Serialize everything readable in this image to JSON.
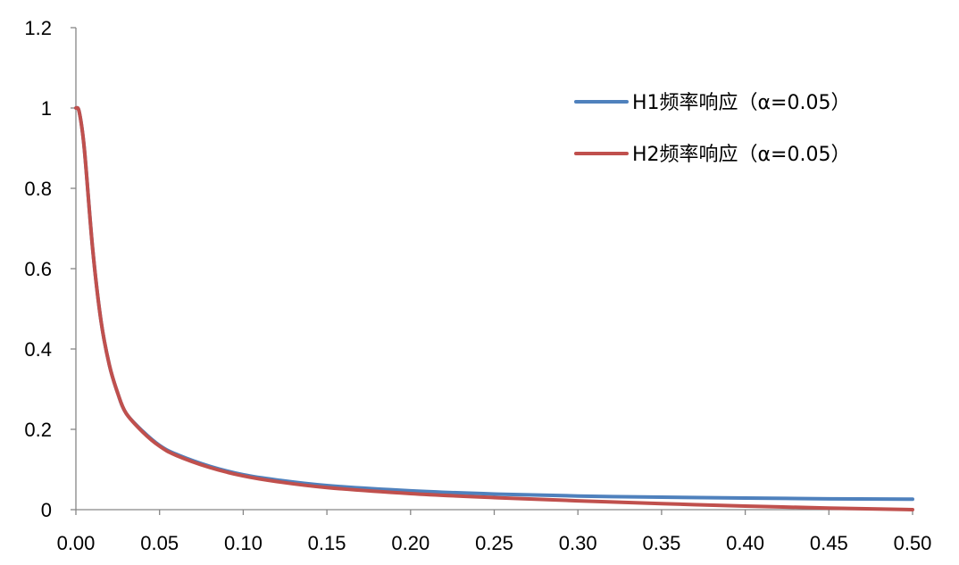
{
  "chart_data": {
    "type": "line",
    "title": "",
    "xlabel": "",
    "ylabel": "",
    "xlim": [
      0,
      0.5
    ],
    "ylim": [
      0,
      1.2
    ],
    "x_ticks": [
      "0.00",
      "0.05",
      "0.10",
      "0.15",
      "0.20",
      "0.25",
      "0.30",
      "0.35",
      "0.40",
      "0.45",
      "0.50"
    ],
    "y_ticks": [
      "0",
      "0.2",
      "0.4",
      "0.6",
      "0.8",
      "1",
      "1.2"
    ],
    "grid": false,
    "legend_position": "top-right",
    "x": [
      0,
      0.002,
      0.005,
      0.01,
      0.015,
      0.02,
      0.025,
      0.03,
      0.04,
      0.05,
      0.06,
      0.08,
      0.1,
      0.12,
      0.15,
      0.2,
      0.25,
      0.3,
      0.35,
      0.4,
      0.45,
      0.5
    ],
    "series": [
      {
        "name": "H1频率响应（α=0.05）",
        "color": "#4F81BD",
        "values": [
          1.0,
          0.99,
          0.9,
          0.65,
          0.47,
          0.36,
          0.29,
          0.24,
          0.195,
          0.16,
          0.138,
          0.108,
          0.087,
          0.074,
          0.06,
          0.047,
          0.039,
          0.034,
          0.031,
          0.029,
          0.027,
          0.026
        ]
      },
      {
        "name": "H2频率响应（α=0.05）",
        "color": "#C0504D",
        "values": [
          1.0,
          0.99,
          0.9,
          0.65,
          0.47,
          0.36,
          0.29,
          0.24,
          0.193,
          0.158,
          0.135,
          0.105,
          0.084,
          0.07,
          0.055,
          0.04,
          0.03,
          0.022,
          0.015,
          0.009,
          0.004,
          0.0
        ]
      }
    ]
  }
}
